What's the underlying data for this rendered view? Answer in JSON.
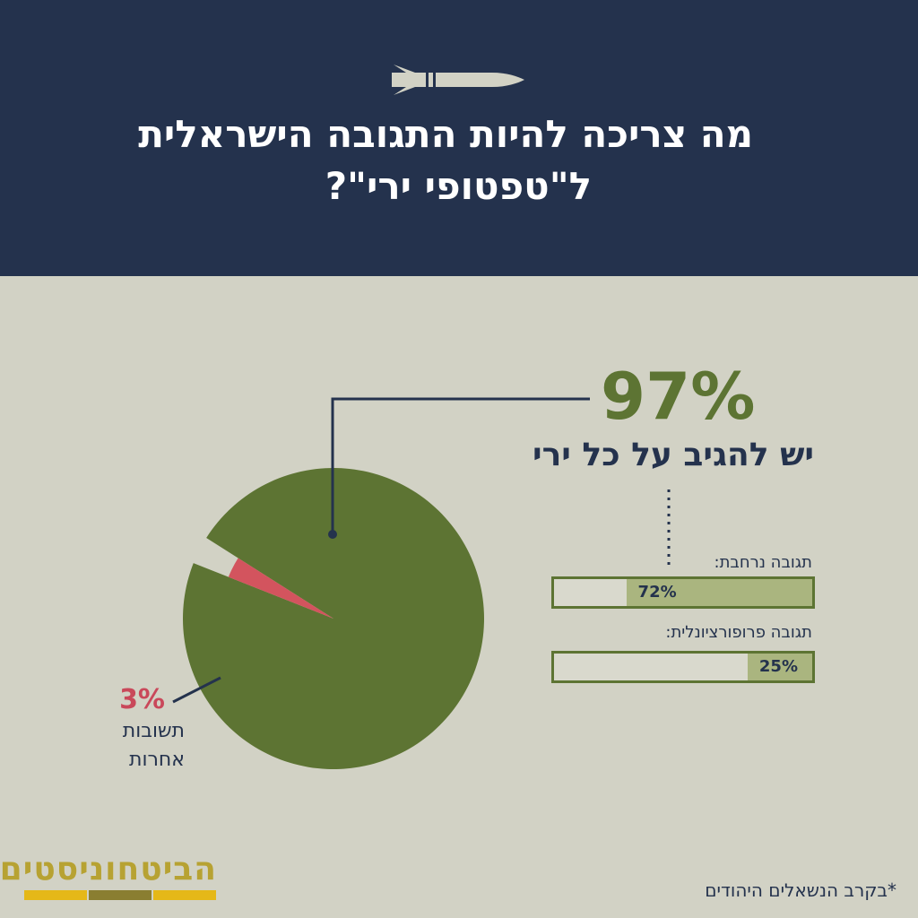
{
  "header": {
    "title_line1": "מה צריכה להיות התגובה הישראלית",
    "title_line2": "ל\"טפטופי ירי\"?",
    "icon": "rocket-icon"
  },
  "chart_data": {
    "type": "pie",
    "slices": [
      {
        "label": "יש להגיב על כל ירי",
        "value": 97,
        "display": "97%",
        "color": "#5d7433"
      },
      {
        "label": "תשובות אחרות",
        "value": 3,
        "display": "3%",
        "color": "#d3545e"
      }
    ],
    "breakdown": {
      "type": "bar",
      "parent": "יש להגיב על כל ירי",
      "bars": [
        {
          "label": "תגובה נרחבת:",
          "value": 72,
          "display": "72%"
        },
        {
          "label": "תגובה פרופורציונלית:",
          "value": 25,
          "display": "25%"
        }
      ]
    }
  },
  "labels": {
    "main_pct": "97%",
    "main_label": "יש להגיב על כל ירי",
    "other_pct": "3%",
    "other_label_line1": "תשובות",
    "other_label_line2": "אחרות"
  },
  "brand": {
    "name": "הביטחוניסטים",
    "stripe_colors": [
      "#e5b818",
      "#8a7e31",
      "#e5b818"
    ]
  },
  "footnote": "*בקרב הנשאלים היהודים",
  "colors": {
    "header_bg": "#24324d",
    "background": "#d2d2c5",
    "green": "#5d7433",
    "light_green": "#aab57f",
    "red": "#d3545e",
    "navy": "#24324d"
  }
}
